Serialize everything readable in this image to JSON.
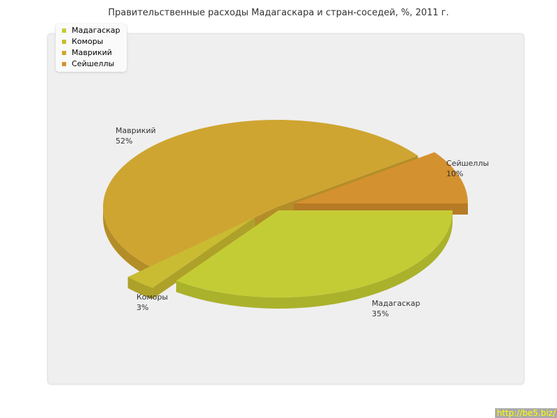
{
  "chart_data": {
    "type": "pie",
    "title": "Правительственные расходы Мадагаскара и стран-соседей, %, 2011 г.",
    "legend_position": "top-left",
    "three_d": true,
    "slices": [
      {
        "name": "Мадагаскар",
        "value": 35,
        "label": "35%",
        "color": "#c4cc35",
        "side": "#aab22c"
      },
      {
        "name": "Коморы",
        "value": 3,
        "label": "3%",
        "color": "#c9bc32",
        "side": "#aea12a"
      },
      {
        "name": "Маврикий",
        "value": 52,
        "label": "52%",
        "color": "#cfa531",
        "side": "#b38e28"
      },
      {
        "name": "Сейшеллы",
        "value": 10,
        "label": "10%",
        "color": "#d4912f",
        "side": "#b67b26"
      }
    ]
  },
  "credit": "http://be5.biz/"
}
